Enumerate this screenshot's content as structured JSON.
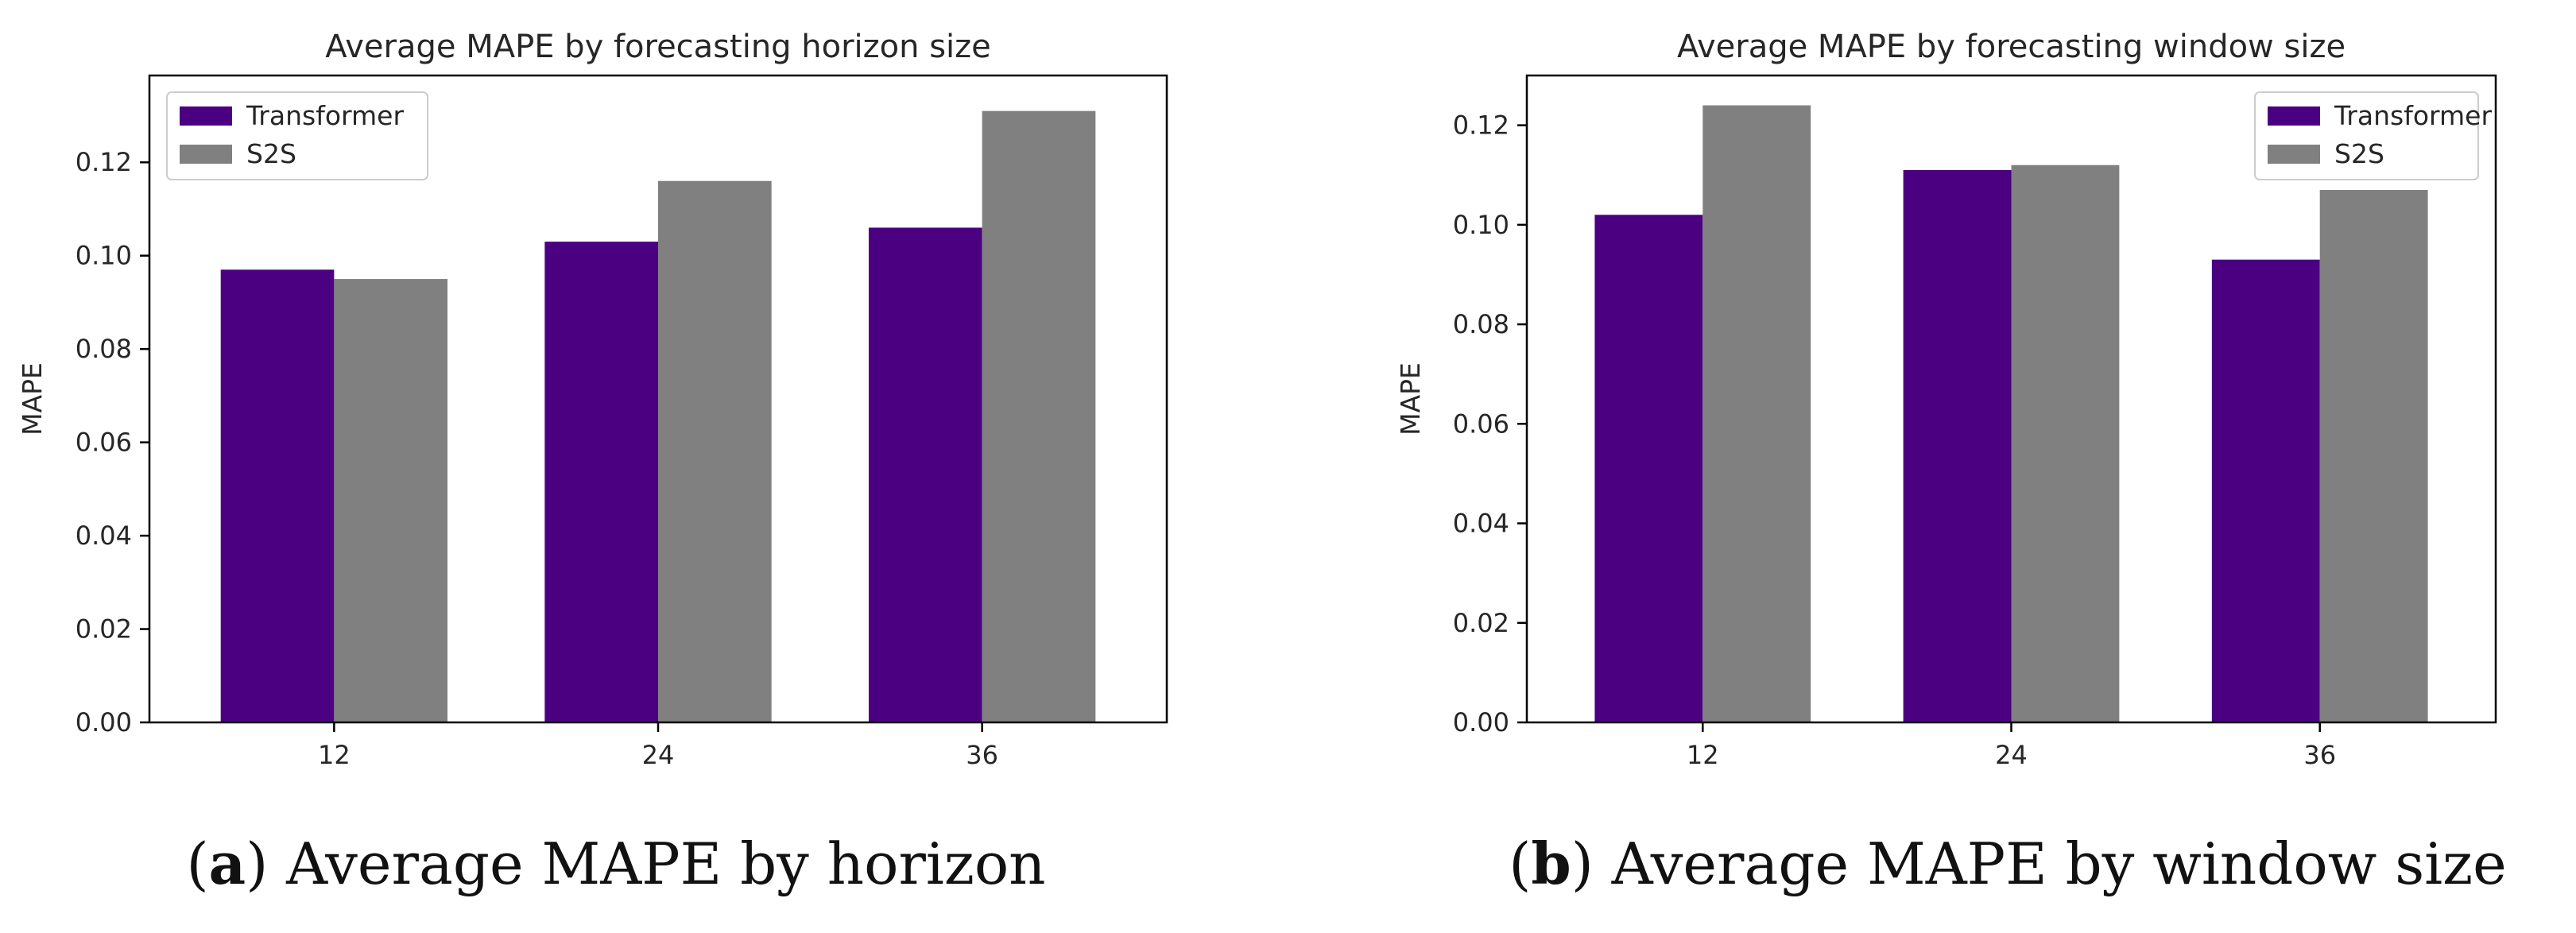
{
  "chart_data": [
    {
      "type": "bar",
      "title": "Average MAPE by forecasting horizon size",
      "xlabel": "",
      "ylabel": "MAPE",
      "categories": [
        "12",
        "24",
        "36"
      ],
      "series": [
        {
          "name": "Transformer",
          "color": "#4b0082",
          "values": [
            0.097,
            0.103,
            0.106
          ]
        },
        {
          "name": "S2S",
          "color": "#808080",
          "values": [
            0.095,
            0.116,
            0.131
          ]
        }
      ],
      "ylim": [
        0,
        0.1386
      ],
      "yticks": [
        0.0,
        0.02,
        0.04,
        0.06,
        0.08,
        0.1,
        0.12
      ],
      "ytick_labels": [
        "0.00",
        "0.02",
        "0.04",
        "0.06",
        "0.08",
        "0.10",
        "0.12"
      ],
      "legend": "top-left",
      "caption": {
        "letter": "a",
        "text": "Average MAPE by horizon"
      }
    },
    {
      "type": "bar",
      "title": "Average MAPE by forecasting window size",
      "xlabel": "",
      "ylabel": "MAPE",
      "categories": [
        "12",
        "24",
        "36"
      ],
      "series": [
        {
          "name": "Transformer",
          "color": "#4b0082",
          "values": [
            0.102,
            0.111,
            0.093
          ]
        },
        {
          "name": "S2S",
          "color": "#808080",
          "values": [
            0.124,
            0.112,
            0.107
          ]
        }
      ],
      "ylim": [
        0,
        0.13
      ],
      "yticks": [
        0.0,
        0.02,
        0.04,
        0.06,
        0.08,
        0.1,
        0.12
      ],
      "ytick_labels": [
        "0.00",
        "0.02",
        "0.04",
        "0.06",
        "0.08",
        "0.10",
        "0.12"
      ],
      "legend": "top-right",
      "caption": {
        "letter": "b",
        "text": "Average MAPE by window size"
      }
    }
  ]
}
